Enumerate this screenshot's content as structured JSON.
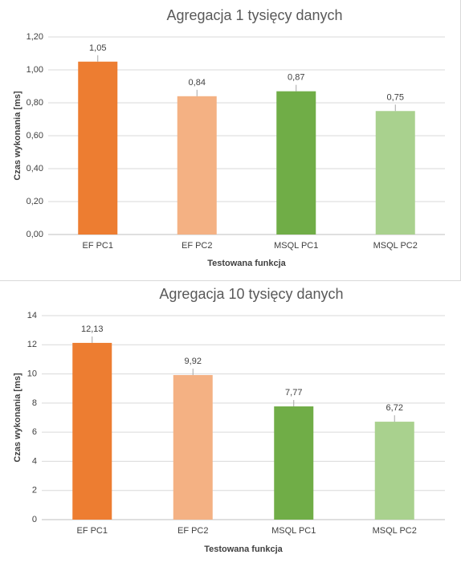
{
  "chart_data": [
    {
      "type": "bar",
      "title": "Agregacja 1 tysięcy danych",
      "xlabel": "Testowana funkcja",
      "ylabel": "Czas wykonania [ms]",
      "categories": [
        "EF PC1",
        "EF PC2",
        "MSQL PC1",
        "MSQL PC2"
      ],
      "values": [
        1.05,
        0.84,
        0.87,
        0.75
      ],
      "value_labels": [
        "1,05",
        "0,84",
        "0,87",
        "0,75"
      ],
      "ylim": [
        0,
        1.2
      ],
      "yticks": [
        0,
        0.2,
        0.4,
        0.6,
        0.8,
        1.0,
        1.2
      ],
      "ytick_labels": [
        "0,00",
        "0,20",
        "0,40",
        "0,60",
        "0,80",
        "1,00",
        "1,20"
      ],
      "bar_colors": [
        "#ed7d31",
        "#f4b183",
        "#70ad47",
        "#a9d18e"
      ],
      "grid": true,
      "legend": "none"
    },
    {
      "type": "bar",
      "title": "Agregacja 10 tysięcy danych",
      "xlabel": "Testowana funkcja",
      "ylabel": "Czas wykonania [ms]",
      "categories": [
        "EF PC1",
        "EF PC2",
        "MSQL PC1",
        "MSQL PC2"
      ],
      "values": [
        12.13,
        9.92,
        7.77,
        6.72
      ],
      "value_labels": [
        "12,13",
        "9,92",
        "7,77",
        "6,72"
      ],
      "ylim": [
        0,
        14
      ],
      "yticks": [
        0,
        2,
        4,
        6,
        8,
        10,
        12,
        14
      ],
      "ytick_labels": [
        "0",
        "2",
        "4",
        "6",
        "8",
        "10",
        "12",
        "14"
      ],
      "bar_colors": [
        "#ed7d31",
        "#f4b183",
        "#70ad47",
        "#a9d18e"
      ],
      "grid": true,
      "legend": "none"
    }
  ]
}
